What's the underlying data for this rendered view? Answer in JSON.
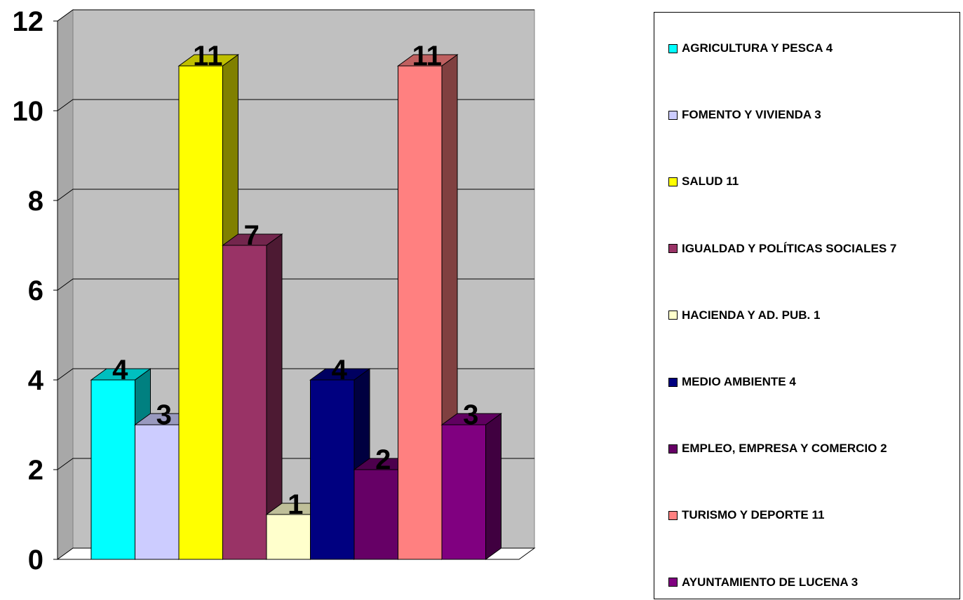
{
  "chart_data": {
    "type": "bar",
    "three_d": true,
    "categories": [
      "AGRICULTURA Y PESCA 4",
      "FOMENTO Y VIVIENDA 3",
      "SALUD 11",
      "IGUALDAD Y POLÍTICAS SOCIALES 7",
      "HACIENDA Y AD. PUB. 1",
      "MEDIO AMBIENTE  4",
      "EMPLEO, EMPRESA Y COMERCIO 2",
      "TURISMO Y DEPORTE 11",
      "AYUNTAMIENTO DE LUCENA 3"
    ],
    "values": [
      4,
      3,
      11,
      7,
      1,
      4,
      2,
      11,
      3
    ],
    "data_labels": [
      "4",
      "3",
      "11",
      "7",
      "1",
      "4",
      "2",
      "11",
      "3"
    ],
    "colors": [
      "#00FFFF",
      "#CCCCFF",
      "#FFFF00",
      "#993366",
      "#FFFFCC",
      "#000080",
      "#660066",
      "#FF8080",
      "#800080"
    ],
    "y_ticks": [
      "0",
      "2",
      "4",
      "6",
      "8",
      "10",
      "12"
    ],
    "ylim": [
      0,
      12
    ],
    "grid": true,
    "wall_color": "#C0C0C0",
    "legend_position": "right"
  }
}
